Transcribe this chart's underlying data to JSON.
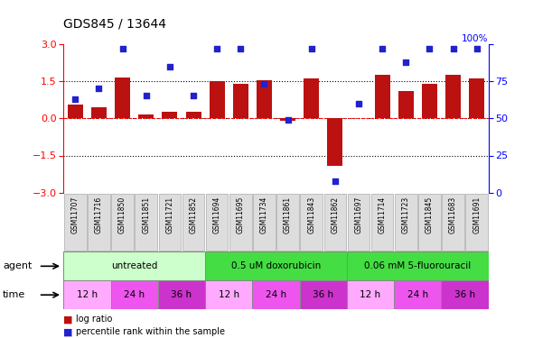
{
  "title": "GDS845 / 13644",
  "samples": [
    "GSM11707",
    "GSM11716",
    "GSM11850",
    "GSM11851",
    "GSM11721",
    "GSM11852",
    "GSM11694",
    "GSM11695",
    "GSM11734",
    "GSM11861",
    "GSM11843",
    "GSM11862",
    "GSM11697",
    "GSM11714",
    "GSM11723",
    "GSM11845",
    "GSM11683",
    "GSM11691"
  ],
  "log_ratio": [
    0.55,
    0.45,
    1.65,
    0.15,
    0.28,
    0.25,
    1.5,
    1.4,
    1.55,
    -0.1,
    1.6,
    -1.9,
    0.0,
    1.75,
    1.1,
    1.4,
    1.75,
    1.6
  ],
  "percentile": [
    63,
    70,
    97,
    65,
    85,
    65,
    97,
    97,
    73,
    49,
    97,
    8,
    60,
    97,
    88,
    97,
    97,
    97
  ],
  "ylim_left": [
    -3,
    3
  ],
  "ylim_right": [
    0,
    100
  ],
  "yticks_left": [
    -3,
    -1.5,
    0,
    1.5,
    3
  ],
  "yticks_right": [
    0,
    25,
    50,
    75,
    100
  ],
  "hlines_dotted": [
    -1.5,
    1.5
  ],
  "hline_zero_red": 0,
  "bar_color": "#bb1111",
  "scatter_color": "#2222cc",
  "agent_groups": [
    {
      "label": "untreated",
      "start": 0,
      "end": 6,
      "color": "#ccffcc"
    },
    {
      "label": "0.5 uM doxorubicin",
      "start": 6,
      "end": 12,
      "color": "#44dd44"
    },
    {
      "label": "0.06 mM 5-fluorouracil",
      "start": 12,
      "end": 18,
      "color": "#44dd44"
    }
  ],
  "time_groups": [
    {
      "label": "12 h",
      "start": 0,
      "end": 2,
      "color": "#ffaaff"
    },
    {
      "label": "24 h",
      "start": 2,
      "end": 4,
      "color": "#ee55ee"
    },
    {
      "label": "36 h",
      "start": 4,
      "end": 6,
      "color": "#cc33cc"
    },
    {
      "label": "12 h",
      "start": 6,
      "end": 8,
      "color": "#ffaaff"
    },
    {
      "label": "24 h",
      "start": 8,
      "end": 10,
      "color": "#ee55ee"
    },
    {
      "label": "36 h",
      "start": 10,
      "end": 12,
      "color": "#cc33cc"
    },
    {
      "label": "12 h",
      "start": 12,
      "end": 14,
      "color": "#ffaaff"
    },
    {
      "label": "24 h",
      "start": 14,
      "end": 16,
      "color": "#ee55ee"
    },
    {
      "label": "36 h",
      "start": 16,
      "end": 18,
      "color": "#cc33cc"
    }
  ],
  "legend_bar_label": "log ratio",
  "legend_scatter_label": "percentile rank within the sample",
  "background_color": "#ffffff",
  "sample_box_color": "#dddddd",
  "sample_box_edge": "#aaaaaa"
}
